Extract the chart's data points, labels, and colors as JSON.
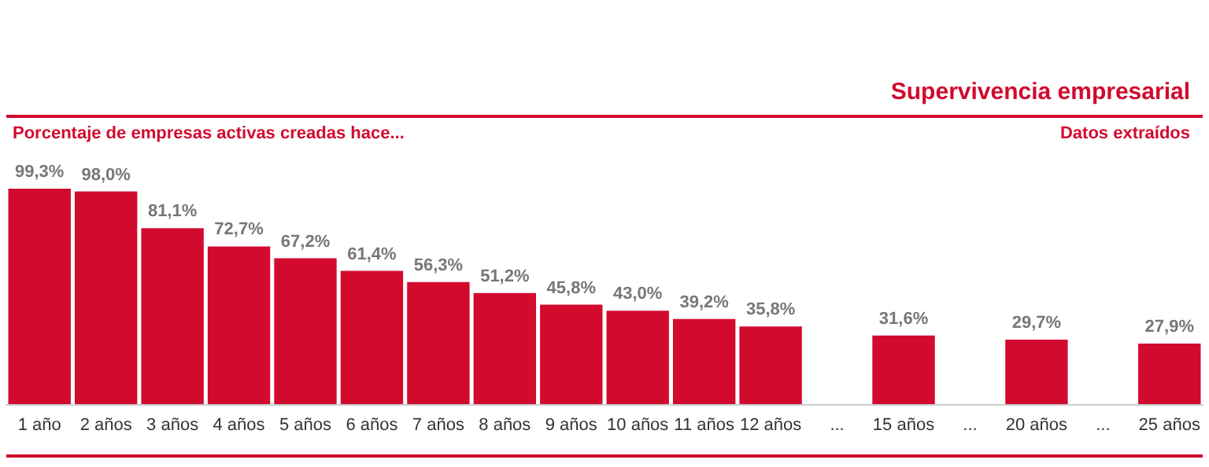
{
  "chart_data": {
    "type": "bar",
    "title": "Supervivencia empresarial",
    "subtitle": "Porcentaje de empresas activas creadas hace...",
    "annotations": [
      "Datos extraídos"
    ],
    "categories": [
      "1 año",
      "2 años",
      "3 años",
      "4 años",
      "5 años",
      "6 años",
      "7 años",
      "8 años",
      "9 años",
      "10 años",
      "11 años",
      "12 años",
      "...",
      "15 años",
      "...",
      "20 años",
      "...",
      "25 años"
    ],
    "values": [
      99.3,
      98.0,
      81.1,
      72.7,
      67.2,
      61.4,
      56.3,
      51.2,
      45.8,
      43.0,
      39.2,
      35.8,
      null,
      31.6,
      null,
      29.7,
      null,
      27.9
    ],
    "value_labels": [
      "99,3%",
      "98,0%",
      "81,1%",
      "72,7%",
      "67,2%",
      "61,4%",
      "56,3%",
      "51,2%",
      "45,8%",
      "43,0%",
      "39,2%",
      "35,8%",
      null,
      "31,6%",
      null,
      "29,7%",
      null,
      "27,9%"
    ],
    "color": "#d20a2e"
  }
}
